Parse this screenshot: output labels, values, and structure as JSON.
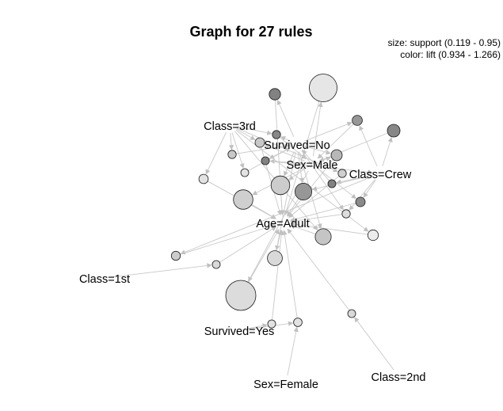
{
  "title": "Graph for 27 rules",
  "legend": {
    "size_line": "size: support (0.119 - 0.95)",
    "color_line": "color: lift (0.934 - 1.266)"
  },
  "items": [
    {
      "id": "class3rd",
      "label": "Class=3rd"
    },
    {
      "id": "survivedNo",
      "label": "Survived=No"
    },
    {
      "id": "sexMale",
      "label": "Sex=Male"
    },
    {
      "id": "classCrew",
      "label": "Class=Crew"
    },
    {
      "id": "ageAdult",
      "label": "Age=Adult"
    },
    {
      "id": "class1st",
      "label": "Class=1st"
    },
    {
      "id": "survivedYes",
      "label": "Survived=Yes"
    },
    {
      "id": "sexFemale",
      "label": "Sex=Female"
    },
    {
      "id": "class2nd",
      "label": "Class=2nd"
    }
  ],
  "rules": [
    {
      "support": 0.25,
      "lift": 1.266,
      "lhs": [
        "survivedNo"
      ],
      "rhs": "ageAdult"
    },
    {
      "support": 0.86,
      "lift": 0.96,
      "lhs": [
        "sexMale"
      ],
      "rhs": "ageAdult"
    },
    {
      "support": 0.2,
      "lift": 1.2,
      "lhs": [
        "survivedNo",
        "classCrew"
      ],
      "rhs": "sexMale"
    },
    {
      "support": 0.3,
      "lift": 1.25,
      "lhs": [
        "classCrew"
      ],
      "rhs": "sexMale"
    },
    {
      "support": 0.12,
      "lift": 1.266,
      "lhs": [
        "survivedNo",
        "sexMale"
      ],
      "rhs": "classCrew"
    },
    {
      "support": 0.12,
      "lift": 1.266,
      "lhs": [
        "classCrew"
      ],
      "rhs": "survivedNo"
    },
    {
      "support": 0.55,
      "lift": 1.03,
      "lhs": [
        "sexMale"
      ],
      "rhs": "ageAdult"
    },
    {
      "support": 0.45,
      "lift": 1.2,
      "lhs": [
        "classCrew",
        "survivedNo"
      ],
      "rhs": "ageAdult"
    },
    {
      "support": 0.18,
      "lift": 1.24,
      "lhs": [
        "classCrew",
        "sexMale"
      ],
      "rhs": "ageAdult"
    },
    {
      "support": 0.24,
      "lift": 1.1,
      "lhs": [
        "sexMale",
        "survivedNo"
      ],
      "rhs": "ageAdult"
    },
    {
      "support": 0.13,
      "lift": 0.99,
      "lhs": [
        "survivedNo",
        "classCrew"
      ],
      "rhs": "ageAdult"
    },
    {
      "support": 0.52,
      "lift": 1.04,
      "lhs": [
        "survivedNo",
        "sexMale"
      ],
      "rhs": "ageAdult"
    },
    {
      "support": 0.13,
      "lift": 1.25,
      "lhs": [
        "survivedNo",
        "class3rd"
      ],
      "rhs": "sexMale"
    },
    {
      "support": 0.13,
      "lift": 1.05,
      "lhs": [
        "class3rd"
      ],
      "rhs": "survivedNo"
    },
    {
      "support": 0.12,
      "lift": 0.97,
      "lhs": [
        "class3rd"
      ],
      "rhs": "survivedNo"
    },
    {
      "support": 0.17,
      "lift": 0.97,
      "lhs": [
        "class3rd"
      ],
      "rhs": "ageAdult"
    },
    {
      "support": 0.18,
      "lift": 1.05,
      "lhs": [
        "class3rd",
        "sexMale"
      ],
      "rhs": "ageAdult"
    },
    {
      "support": 0.13,
      "lift": 1.03,
      "lhs": [
        "class3rd"
      ],
      "rhs": "ageAdult"
    },
    {
      "support": 0.22,
      "lift": 0.94,
      "lhs": [
        "class3rd"
      ],
      "rhs": "ageAdult"
    },
    {
      "support": 0.42,
      "lift": 1.06,
      "lhs": [
        "class3rd",
        "survivedNo"
      ],
      "rhs": "ageAdult"
    },
    {
      "support": 0.38,
      "lift": 1.0,
      "lhs": [
        "survivedNo"
      ],
      "rhs": "ageAdult"
    },
    {
      "support": 0.16,
      "lift": 1.04,
      "lhs": [
        "classCrew"
      ],
      "rhs": "ageAdult"
    },
    {
      "support": 0.12,
      "lift": 1.0,
      "lhs": [
        "class1st"
      ],
      "rhs": "ageAdult"
    },
    {
      "support": 0.95,
      "lift": 0.99,
      "lhs": [
        "sexMale"
      ],
      "rhs": "ageAdult"
    },
    {
      "support": 0.12,
      "lift": 0.97,
      "lhs": [
        "survivedYes"
      ],
      "rhs": "ageAdult"
    },
    {
      "support": 0.14,
      "lift": 0.97,
      "lhs": [
        "survivedYes",
        "sexFemale"
      ],
      "rhs": "ageAdult"
    },
    {
      "support": 0.12,
      "lift": 1.0,
      "lhs": [
        "class2nd"
      ],
      "rhs": "ageAdult"
    }
  ]
}
